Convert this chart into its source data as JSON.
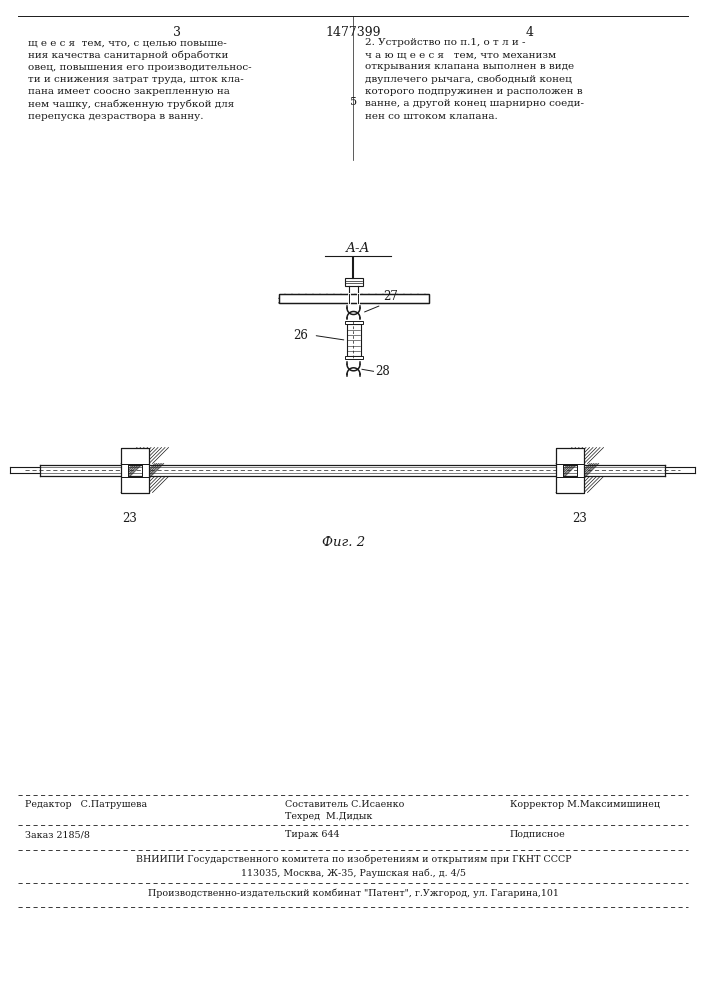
{
  "bg_color": "#ffffff",
  "page_width": 7.07,
  "page_height": 10.0,
  "top_text_left": "щ е е с я  тем, что, с целью повыше-\nния качества санитарной обработки\nовец, повышения его производительнос-\nти и снижения затрат труда, шток кла-\nпана имеет соосно закрепленную на\nнем чашку, снабженную трубкой для\nперепуска дезраствора в ванну.",
  "top_text_right": "2. Устройство по п.1, о т л и -\nч а ю щ е е с я   тем, что механизм\nоткрывания клапана выполнен в виде\nдвуплечего рычага, свободный конец\nкоторого подпружинен и расположен в\nванне, а другой конец шарнирно соеди-\nнен со штоком клапана.",
  "page_num_left": "3",
  "page_num_right": "4",
  "patent_num": "1477399",
  "line_number_5": "5",
  "fig_label": "Фиг. 2",
  "section_label": "А-А",
  "label_27": "27",
  "label_26": "26",
  "label_28": "28",
  "label_23a": "23",
  "label_23b": "23",
  "footer_line1_left": "Редактор   С.Патрушева",
  "footer_line1_center1": "Составитель С.Исаенко",
  "footer_line1_center2": "Техред  М.Дидык",
  "footer_line1_right": "Корректор М.Максимишинец",
  "footer_line2_left": "Заказ 2185/8",
  "footer_line2_center": "Тираж 644",
  "footer_line2_right": "Подписное",
  "footer_line3": "ВНИИПИ Государственного комитета по изобретениям и открытиям при ГКНТ СССР",
  "footer_line4": "113035, Москва, Ж-35, Раушская наб., д. 4/5",
  "footer_line5": "Производственно-издательский комбинат \"Патент\", г.Ужгород, ул. Гагарина,101",
  "text_color": "#1a1a1a",
  "draw_color": "#1a1a1a"
}
